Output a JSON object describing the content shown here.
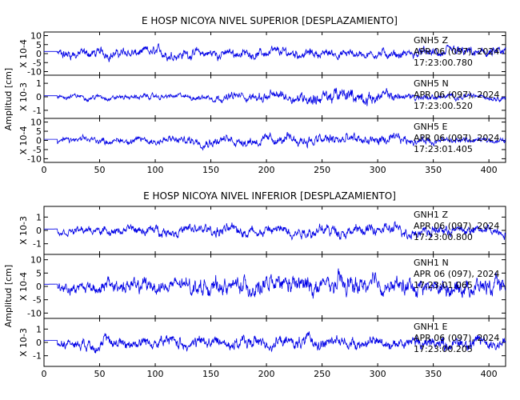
{
  "chart_data": [
    {
      "type": "line",
      "title": "E HOSP NICOYA NIVEL SUPERIOR [DESPLAZAMIENTO]",
      "ylabel": "Amplitud [cm]",
      "xlim": [
        0,
        415
      ],
      "xticks": [
        0,
        50,
        100,
        150,
        200,
        250,
        300,
        350,
        400
      ],
      "series": [
        {
          "name": "GNH5 Z",
          "scale_label": "X 10-4",
          "ylim": [
            -12,
            12
          ],
          "yticks": [
            -10,
            -5,
            0,
            5,
            10
          ],
          "date": "APR 06 (097), 2024",
          "time": "17:23:00.780",
          "envelope": [
            6,
            6,
            5.5,
            6,
            5.5,
            5,
            5.5,
            5,
            5,
            5.5,
            6,
            6
          ]
        },
        {
          "name": "GNH5 N",
          "scale_label": "X 10-3",
          "ylim": [
            -1.6,
            1.6
          ],
          "yticks": [
            -1,
            0,
            1
          ],
          "date": "APR 06 (097), 2024",
          "time": "17:23:00.520",
          "envelope": [
            0.4,
            0.4,
            0.4,
            0.4,
            0.5,
            0.7,
            0.9,
            1.2,
            0.9,
            0.5,
            0.4,
            0.4
          ]
        },
        {
          "name": "GNH5 E",
          "scale_label": "X 10-4",
          "ylim": [
            -12,
            12
          ],
          "yticks": [
            -10,
            -5,
            0,
            5,
            10
          ],
          "date": "APR 06 (097), 2024",
          "time": "17:23:01.405",
          "envelope": [
            3,
            3.5,
            4,
            5,
            5,
            5.5,
            6,
            7,
            6,
            4,
            3.5,
            3
          ]
        }
      ]
    },
    {
      "type": "line",
      "title": "E HOSP NICOYA NIVEL INFERIOR [DESPLAZAMIENTO]",
      "ylabel": "Amplitud [cm]",
      "xlim": [
        0,
        415
      ],
      "xticks": [
        0,
        50,
        100,
        150,
        200,
        250,
        300,
        350,
        400
      ],
      "series": [
        {
          "name": "GNH1 Z",
          "scale_label": "X 10-3",
          "ylim": [
            -1.8,
            1.8
          ],
          "yticks": [
            -1,
            0,
            1
          ],
          "date": "APR 06 (097), 2024",
          "time": "17:23:00.800",
          "envelope": [
            0.5,
            0.6,
            0.7,
            0.8,
            0.9,
            0.9,
            0.9,
            0.9,
            0.9,
            0.9,
            0.8,
            0.8
          ]
        },
        {
          "name": "GNH1 N",
          "scale_label": "X 10-4",
          "ylim": [
            -12,
            12
          ],
          "yticks": [
            -10,
            -5,
            0,
            5,
            10
          ],
          "date": "APR 06 (097), 2024",
          "time": "17:23:01.065",
          "envelope": [
            4,
            5,
            6,
            6,
            6.5,
            7,
            7.5,
            8,
            7,
            6.5,
            7,
            6
          ]
        },
        {
          "name": "GNH1 E",
          "scale_label": "X 10-3",
          "ylim": [
            -1.8,
            1.8
          ],
          "yticks": [
            -1,
            0,
            1
          ],
          "date": "APR 06 (097), 2024",
          "time": "17:23:00.205",
          "envelope": [
            0.7,
            0.9,
            1,
            1,
            1,
            1,
            1,
            0.9,
            0.9,
            1,
            1.1,
            1
          ]
        }
      ]
    }
  ]
}
